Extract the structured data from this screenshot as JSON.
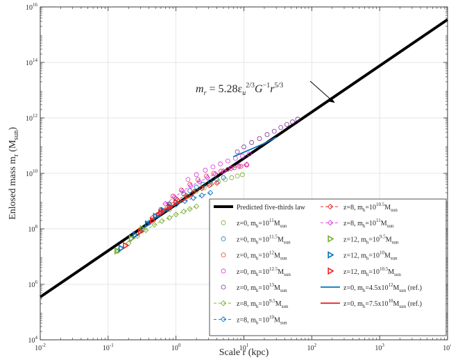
{
  "chart_data": {
    "type": "scatter",
    "xscale": "log",
    "yscale": "log",
    "xlim": [
      0.01,
      10000
    ],
    "ylim": [
      10000,
      1e+16
    ],
    "grid": true,
    "xlabel": "Scale r (kpc)",
    "ylabel": "Enlosed mass m",
    "ylabel_sub": "r",
    "ylabel_paren": "(M",
    "ylabel_paren_sub": "sun",
    "ylabel_close": ")",
    "x_ticks": [
      {
        "value": 0.01,
        "base": "10",
        "exp": "-2"
      },
      {
        "value": 0.1,
        "base": "10",
        "exp": "-1"
      },
      {
        "value": 1,
        "base": "10",
        "exp": "0"
      },
      {
        "value": 10,
        "base": "10",
        "exp": "1"
      },
      {
        "value": 100,
        "base": "10",
        "exp": "2"
      },
      {
        "value": 1000,
        "base": "10",
        "exp": "3"
      },
      {
        "value": 10000,
        "base": "10",
        "exp": "4"
      }
    ],
    "y_ticks": [
      {
        "value": 10000,
        "base": "10",
        "exp": "4"
      },
      {
        "value": 1000000,
        "base": "10",
        "exp": "6"
      },
      {
        "value": 100000000,
        "base": "10",
        "exp": "8"
      },
      {
        "value": 10000000000,
        "base": "10",
        "exp": "10"
      },
      {
        "value": 1000000000000,
        "base": "10",
        "exp": "12"
      },
      {
        "value": 100000000000000,
        "base": "10",
        "exp": "14"
      },
      {
        "value": 10000000000000000,
        "base": "10",
        "exp": "16"
      }
    ],
    "annotation": {
      "parts": [
        "m",
        "r",
        " = 5.28ε",
        "u",
        "2/3",
        "G",
        "−1",
        "r",
        "5/3"
      ],
      "arrow_to": [
        220,
        3500000000000.0
      ]
    },
    "law_line": {
      "x": [
        0.01,
        10000
      ],
      "y": [
        350000,
        3500000000000000.0
      ],
      "color": "#000000"
    },
    "legend_location": "lower right",
    "legend": [
      {
        "pre": "Predicted five-thirds law",
        "base": "",
        "exp": "",
        "post": "",
        "sub": "",
        "tail": "",
        "symbol": "thick-line",
        "color": "#000000"
      },
      {
        "pre": "z=0, m",
        "sub": "h",
        "base": "=10",
        "exp": "11",
        "post": "M",
        "tail": "sun",
        "end": "",
        "symbol": "circle",
        "color": "#77AC30"
      },
      {
        "pre": "z=0, m",
        "sub": "h",
        "base": "=10",
        "exp": "11.5",
        "post": "M",
        "tail": "sun",
        "end": "",
        "symbol": "circle",
        "color": "#0072BD"
      },
      {
        "pre": "z=0, m",
        "sub": "h",
        "base": "=10",
        "exp": "12",
        "post": "M",
        "tail": "sun",
        "end": "",
        "symbol": "circle",
        "color": "#EE3333"
      },
      {
        "pre": "z=0, m",
        "sub": "h",
        "base": "=10",
        "exp": "12.5",
        "post": "M",
        "tail": "sun",
        "end": "",
        "symbol": "circle",
        "color": "#DD33DD"
      },
      {
        "pre": "z=0, m",
        "sub": "h",
        "base": "=10",
        "exp": "13",
        "post": "M",
        "tail": "sun",
        "end": "",
        "symbol": "circle",
        "color": "#7E2F8E"
      },
      {
        "pre": "z=8, m",
        "sub": "h",
        "base": "=10",
        "exp": "9.5",
        "post": "M",
        "tail": "sun",
        "end": "",
        "symbol": "diamond-dash",
        "color": "#77AC30"
      },
      {
        "pre": "z=8, m",
        "sub": "h",
        "base": "=10",
        "exp": "10",
        "post": "M",
        "tail": "sun",
        "end": "",
        "symbol": "diamond-dash",
        "color": "#0072BD"
      },
      {
        "pre": "z=8, m",
        "sub": "h",
        "base": "=10",
        "exp": "10.5",
        "post": "M",
        "tail": "sun",
        "end": "",
        "symbol": "diamond-dash",
        "color": "#EE2222"
      },
      {
        "pre": "z=8, m",
        "sub": "h",
        "base": "=10",
        "exp": "11",
        "post": "M",
        "tail": "sun",
        "end": "",
        "symbol": "diamond-dash",
        "color": "#DD33DD"
      },
      {
        "pre": "z=12, m",
        "sub": "h",
        "base": "=10",
        "exp": "9.5",
        "post": "M",
        "tail": "sun",
        "end": "",
        "symbol": "triangle",
        "color": "#77AC30"
      },
      {
        "pre": "z=12, m",
        "sub": "h",
        "base": "=10",
        "exp": "10",
        "post": "M",
        "tail": "sun",
        "end": "",
        "symbol": "triangle",
        "color": "#0072BD"
      },
      {
        "pre": "z=12, m",
        "sub": "h",
        "base": "=10",
        "exp": "10.5",
        "post": "M",
        "tail": "sun",
        "end": "",
        "symbol": "triangle",
        "color": "#EE2222"
      },
      {
        "pre": "z=0, m",
        "sub": "h",
        "base": "=4.5x10",
        "exp": "12",
        "post": "M",
        "tail": "sun",
        "end": " (ref.)",
        "symbol": "line",
        "color": "#0072BD"
      },
      {
        "pre": "z=0, m",
        "sub": "h",
        "base": "=7.5x10",
        "exp": "10",
        "post": "M",
        "tail": "sun",
        "end": " (ref.)",
        "symbol": "line",
        "color": "#EE2222"
      }
    ],
    "series": [
      {
        "legend_index": 1,
        "kind": "circle",
        "color": "#77AC30",
        "x": [
          0.8,
          1.1,
          1.5,
          2.0,
          2.6,
          3.3,
          4.2,
          5.3,
          6.6,
          8.0,
          9.5
        ],
        "y": [
          500000000,
          1000000000,
          1500000000,
          2300000000,
          3000000000,
          4000000000,
          5000000000,
          6000000000,
          7000000000,
          8000000000,
          9000000000
        ]
      },
      {
        "legend_index": 2,
        "kind": "circle",
        "color": "#0072BD",
        "x": [
          0.6,
          0.8,
          1.0,
          1.3,
          1.6,
          2.0,
          2.5,
          3.2,
          4.0,
          5.0
        ],
        "y": [
          500000000,
          800000000,
          1200000000,
          1800000000,
          2400000000,
          3200000000,
          4000000000,
          5000000000,
          6000000000,
          7000000000
        ]
      },
      {
        "legend_index": 3,
        "kind": "circle",
        "color": "#EE3333",
        "x": [
          0.9,
          1.2,
          1.6,
          2.1,
          2.8,
          3.6,
          4.6,
          5.8,
          7.2,
          9.0,
          11.0
        ],
        "y": [
          1500000000,
          2500000000,
          4000000000,
          6000000000,
          8000000000,
          10000000000,
          12000000000,
          14000000000,
          16000000000,
          18000000000,
          20000000000
        ]
      },
      {
        "legend_index": 4,
        "kind": "circle",
        "color": "#DD33DD",
        "x": [
          1.5,
          2.0,
          2.7,
          3.5,
          4.5,
          5.8,
          7.5,
          9.5,
          12.0
        ],
        "y": [
          6000000000,
          9000000000,
          13000000000,
          17000000000,
          22000000000,
          28000000000,
          35000000000,
          42000000000,
          50000000000
        ]
      },
      {
        "legend_index": 5,
        "kind": "circle",
        "color": "#7E2F8E",
        "x": [
          8.0,
          10.0,
          13.0,
          17.0,
          22.0,
          28.0,
          35.0,
          43.0,
          52.0,
          62.0
        ],
        "y": [
          60000000000,
          90000000000,
          130000000000,
          180000000000,
          250000000000,
          330000000000,
          450000000000,
          580000000000,
          720000000000,
          900000000000
        ]
      },
      {
        "legend_index": 6,
        "kind": "diamond-dash",
        "color": "#77AC30",
        "x": [
          0.14,
          0.2,
          0.27,
          0.36,
          0.48,
          0.62,
          0.8,
          1.0,
          1.3,
          1.6,
          2.0
        ],
        "y": [
          16000000,
          30000000,
          55000000,
          90000000,
          140000000,
          190000000,
          250000000,
          330000000,
          420000000,
          520000000,
          650000000
        ]
      },
      {
        "legend_index": 7,
        "kind": "diamond-dash",
        "color": "#0072BD",
        "x": [
          0.3,
          0.4,
          0.55,
          0.75,
          1.0,
          1.35,
          1.8,
          2.4,
          3.2
        ],
        "y": [
          90000000,
          170000000,
          300000000,
          500000000,
          750000000,
          1000000000,
          1300000000,
          1600000000,
          2000000000
        ]
      },
      {
        "legend_index": 8,
        "kind": "diamond-dash",
        "color": "#EE2222",
        "x": [
          0.45,
          0.6,
          0.8,
          1.05,
          1.4,
          1.85,
          2.4,
          3.1,
          4.0
        ],
        "y": [
          250000000,
          450000000,
          750000000,
          1100000000,
          1600000000,
          2200000000,
          2900000000,
          3700000000,
          4500000000
        ]
      },
      {
        "legend_index": 9,
        "kind": "diamond-dash",
        "color": "#DD33DD",
        "x": [
          0.7,
          0.95,
          1.25,
          1.65,
          2.2,
          2.9,
          3.8,
          5.0,
          6.5,
          8.5,
          11.0
        ],
        "y": [
          800000000,
          1400000000,
          2300000000,
          3500000000,
          5000000000,
          7000000000,
          9500000000,
          12000000000,
          15000000000,
          18000000000,
          21000000000
        ]
      },
      {
        "legend_index": 10,
        "kind": "triangle",
        "color": "#77AC30",
        "x": [
          0.135,
          0.22,
          0.32
        ],
        "y": [
          16000000,
          45000000,
          100000000
        ]
      },
      {
        "legend_index": 11,
        "kind": "triangle",
        "color": "#0072BD",
        "x": [
          0.155,
          0.25,
          0.38,
          0.5,
          0.65,
          0.8
        ],
        "y": [
          20000000,
          60000000,
          150000000,
          280000000,
          450000000,
          650000000
        ]
      },
      {
        "legend_index": 12,
        "kind": "triangle",
        "color": "#EE2222",
        "x": [
          0.18,
          0.3,
          0.45,
          0.6,
          0.8,
          1.0
        ],
        "y": [
          25000000,
          80000000,
          200000000,
          380000000,
          600000000,
          900000000
        ]
      },
      {
        "legend_index": 13,
        "kind": "line",
        "color": "#0072BD",
        "x": [
          7.0,
          12.0,
          20.0,
          30.0
        ],
        "y": [
          40000000000,
          70000000000,
          120000000000,
          200000000000
        ]
      },
      {
        "legend_index": 14,
        "kind": "line",
        "color": "#EE2222",
        "x": [
          0.5,
          0.8,
          1.2,
          1.8
        ],
        "y": [
          350000000,
          600000000,
          1000000000,
          1700000000
        ]
      }
    ]
  }
}
